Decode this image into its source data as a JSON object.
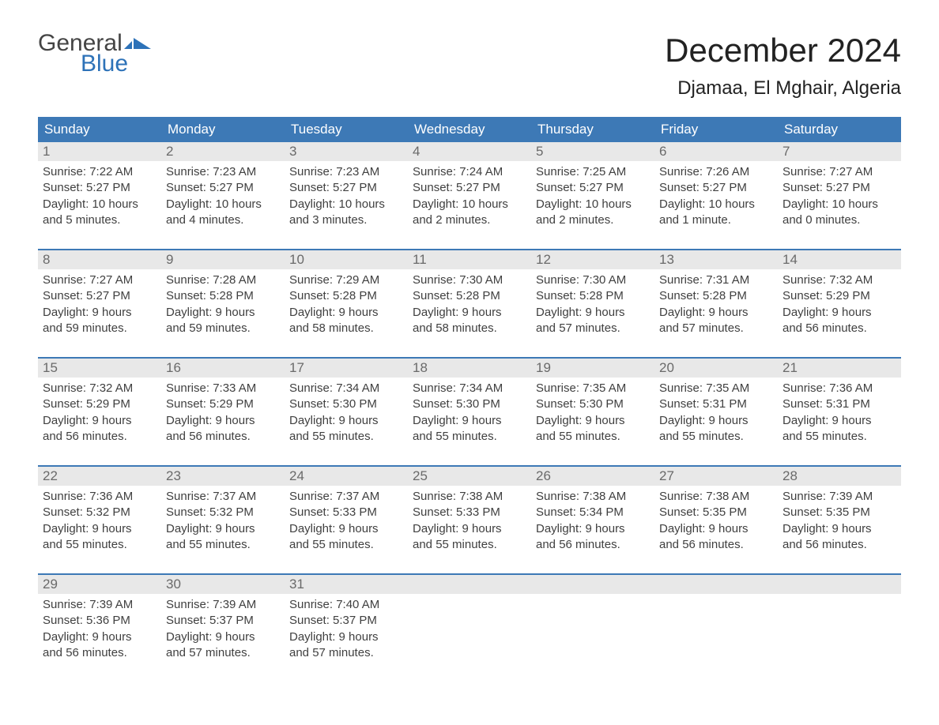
{
  "logo": {
    "general": "General",
    "blue": "Blue"
  },
  "title": "December 2024",
  "location": "Djamaa, El Mghair, Algeria",
  "colors": {
    "header_bg": "#3d79b6",
    "header_text": "#ffffff",
    "daynum_bg": "#e8e8e8",
    "daynum_text": "#6a6a6a",
    "body_text": "#404040",
    "logo_blue": "#2d72b8",
    "logo_gray": "#444444",
    "rule": "#3d79b6",
    "background": "#ffffff"
  },
  "typography": {
    "title_fontsize": 42,
    "location_fontsize": 24,
    "header_fontsize": 17,
    "daynum_fontsize": 17,
    "cell_fontsize": 15,
    "logo_fontsize": 30
  },
  "day_names": [
    "Sunday",
    "Monday",
    "Tuesday",
    "Wednesday",
    "Thursday",
    "Friday",
    "Saturday"
  ],
  "weeks": [
    [
      {
        "n": "1",
        "sr": "Sunrise: 7:22 AM",
        "ss": "Sunset: 5:27 PM",
        "d1": "Daylight: 10 hours",
        "d2": "and 5 minutes."
      },
      {
        "n": "2",
        "sr": "Sunrise: 7:23 AM",
        "ss": "Sunset: 5:27 PM",
        "d1": "Daylight: 10 hours",
        "d2": "and 4 minutes."
      },
      {
        "n": "3",
        "sr": "Sunrise: 7:23 AM",
        "ss": "Sunset: 5:27 PM",
        "d1": "Daylight: 10 hours",
        "d2": "and 3 minutes."
      },
      {
        "n": "4",
        "sr": "Sunrise: 7:24 AM",
        "ss": "Sunset: 5:27 PM",
        "d1": "Daylight: 10 hours",
        "d2": "and 2 minutes."
      },
      {
        "n": "5",
        "sr": "Sunrise: 7:25 AM",
        "ss": "Sunset: 5:27 PM",
        "d1": "Daylight: 10 hours",
        "d2": "and 2 minutes."
      },
      {
        "n": "6",
        "sr": "Sunrise: 7:26 AM",
        "ss": "Sunset: 5:27 PM",
        "d1": "Daylight: 10 hours",
        "d2": "and 1 minute."
      },
      {
        "n": "7",
        "sr": "Sunrise: 7:27 AM",
        "ss": "Sunset: 5:27 PM",
        "d1": "Daylight: 10 hours",
        "d2": "and 0 minutes."
      }
    ],
    [
      {
        "n": "8",
        "sr": "Sunrise: 7:27 AM",
        "ss": "Sunset: 5:27 PM",
        "d1": "Daylight: 9 hours",
        "d2": "and 59 minutes."
      },
      {
        "n": "9",
        "sr": "Sunrise: 7:28 AM",
        "ss": "Sunset: 5:28 PM",
        "d1": "Daylight: 9 hours",
        "d2": "and 59 minutes."
      },
      {
        "n": "10",
        "sr": "Sunrise: 7:29 AM",
        "ss": "Sunset: 5:28 PM",
        "d1": "Daylight: 9 hours",
        "d2": "and 58 minutes."
      },
      {
        "n": "11",
        "sr": "Sunrise: 7:30 AM",
        "ss": "Sunset: 5:28 PM",
        "d1": "Daylight: 9 hours",
        "d2": "and 58 minutes."
      },
      {
        "n": "12",
        "sr": "Sunrise: 7:30 AM",
        "ss": "Sunset: 5:28 PM",
        "d1": "Daylight: 9 hours",
        "d2": "and 57 minutes."
      },
      {
        "n": "13",
        "sr": "Sunrise: 7:31 AM",
        "ss": "Sunset: 5:28 PM",
        "d1": "Daylight: 9 hours",
        "d2": "and 57 minutes."
      },
      {
        "n": "14",
        "sr": "Sunrise: 7:32 AM",
        "ss": "Sunset: 5:29 PM",
        "d1": "Daylight: 9 hours",
        "d2": "and 56 minutes."
      }
    ],
    [
      {
        "n": "15",
        "sr": "Sunrise: 7:32 AM",
        "ss": "Sunset: 5:29 PM",
        "d1": "Daylight: 9 hours",
        "d2": "and 56 minutes."
      },
      {
        "n": "16",
        "sr": "Sunrise: 7:33 AM",
        "ss": "Sunset: 5:29 PM",
        "d1": "Daylight: 9 hours",
        "d2": "and 56 minutes."
      },
      {
        "n": "17",
        "sr": "Sunrise: 7:34 AM",
        "ss": "Sunset: 5:30 PM",
        "d1": "Daylight: 9 hours",
        "d2": "and 55 minutes."
      },
      {
        "n": "18",
        "sr": "Sunrise: 7:34 AM",
        "ss": "Sunset: 5:30 PM",
        "d1": "Daylight: 9 hours",
        "d2": "and 55 minutes."
      },
      {
        "n": "19",
        "sr": "Sunrise: 7:35 AM",
        "ss": "Sunset: 5:30 PM",
        "d1": "Daylight: 9 hours",
        "d2": "and 55 minutes."
      },
      {
        "n": "20",
        "sr": "Sunrise: 7:35 AM",
        "ss": "Sunset: 5:31 PM",
        "d1": "Daylight: 9 hours",
        "d2": "and 55 minutes."
      },
      {
        "n": "21",
        "sr": "Sunrise: 7:36 AM",
        "ss": "Sunset: 5:31 PM",
        "d1": "Daylight: 9 hours",
        "d2": "and 55 minutes."
      }
    ],
    [
      {
        "n": "22",
        "sr": "Sunrise: 7:36 AM",
        "ss": "Sunset: 5:32 PM",
        "d1": "Daylight: 9 hours",
        "d2": "and 55 minutes."
      },
      {
        "n": "23",
        "sr": "Sunrise: 7:37 AM",
        "ss": "Sunset: 5:32 PM",
        "d1": "Daylight: 9 hours",
        "d2": "and 55 minutes."
      },
      {
        "n": "24",
        "sr": "Sunrise: 7:37 AM",
        "ss": "Sunset: 5:33 PM",
        "d1": "Daylight: 9 hours",
        "d2": "and 55 minutes."
      },
      {
        "n": "25",
        "sr": "Sunrise: 7:38 AM",
        "ss": "Sunset: 5:33 PM",
        "d1": "Daylight: 9 hours",
        "d2": "and 55 minutes."
      },
      {
        "n": "26",
        "sr": "Sunrise: 7:38 AM",
        "ss": "Sunset: 5:34 PM",
        "d1": "Daylight: 9 hours",
        "d2": "and 56 minutes."
      },
      {
        "n": "27",
        "sr": "Sunrise: 7:38 AM",
        "ss": "Sunset: 5:35 PM",
        "d1": "Daylight: 9 hours",
        "d2": "and 56 minutes."
      },
      {
        "n": "28",
        "sr": "Sunrise: 7:39 AM",
        "ss": "Sunset: 5:35 PM",
        "d1": "Daylight: 9 hours",
        "d2": "and 56 minutes."
      }
    ],
    [
      {
        "n": "29",
        "sr": "Sunrise: 7:39 AM",
        "ss": "Sunset: 5:36 PM",
        "d1": "Daylight: 9 hours",
        "d2": "and 56 minutes."
      },
      {
        "n": "30",
        "sr": "Sunrise: 7:39 AM",
        "ss": "Sunset: 5:37 PM",
        "d1": "Daylight: 9 hours",
        "d2": "and 57 minutes."
      },
      {
        "n": "31",
        "sr": "Sunrise: 7:40 AM",
        "ss": "Sunset: 5:37 PM",
        "d1": "Daylight: 9 hours",
        "d2": "and 57 minutes."
      },
      {
        "n": "",
        "sr": "",
        "ss": "",
        "d1": "",
        "d2": ""
      },
      {
        "n": "",
        "sr": "",
        "ss": "",
        "d1": "",
        "d2": ""
      },
      {
        "n": "",
        "sr": "",
        "ss": "",
        "d1": "",
        "d2": ""
      },
      {
        "n": "",
        "sr": "",
        "ss": "",
        "d1": "",
        "d2": ""
      }
    ]
  ]
}
